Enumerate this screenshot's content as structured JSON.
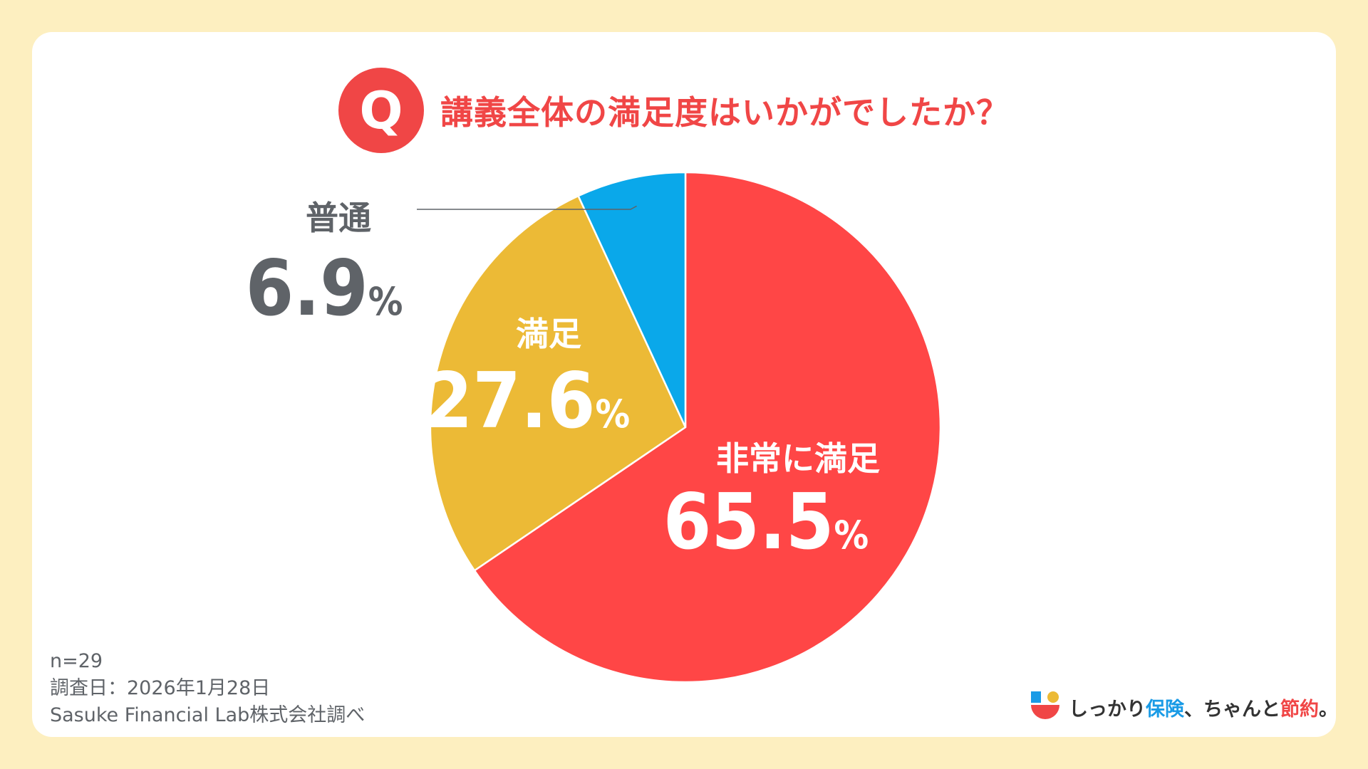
{
  "question": {
    "badge": "Q",
    "text": "講義全体の満足度はいかがでしたか？"
  },
  "chart_data": {
    "type": "pie",
    "title": "講義全体の満足度はいかがでしたか？",
    "start": "12 o'clock, clockwise",
    "slices": [
      {
        "label": "非常に満足",
        "value": 65.5,
        "display": "65.5",
        "unit": "%",
        "color": "#ff4646",
        "label_color": "#ffffff"
      },
      {
        "label": "満足",
        "value": 27.6,
        "display": "27.6",
        "unit": "%",
        "color": "#ecba36",
        "label_color": "#ffffff"
      },
      {
        "label": "普通",
        "value": 6.9,
        "display": "6.9",
        "unit": "%",
        "color": "#0aa8ea",
        "label_color": "#5f6368"
      }
    ]
  },
  "meta": {
    "n": "n=29",
    "date": "調査日：2026年1月28日",
    "source": "Sasuke Financial Lab株式会社調べ"
  },
  "brand": {
    "part1": "しっかり",
    "part2": "保険",
    "part3": "、ちゃんと",
    "part4": "節約",
    "part5": "。"
  },
  "colors": {
    "background": "#fdefc0",
    "accent": "#f04646",
    "leader_line": "#5f6368"
  }
}
